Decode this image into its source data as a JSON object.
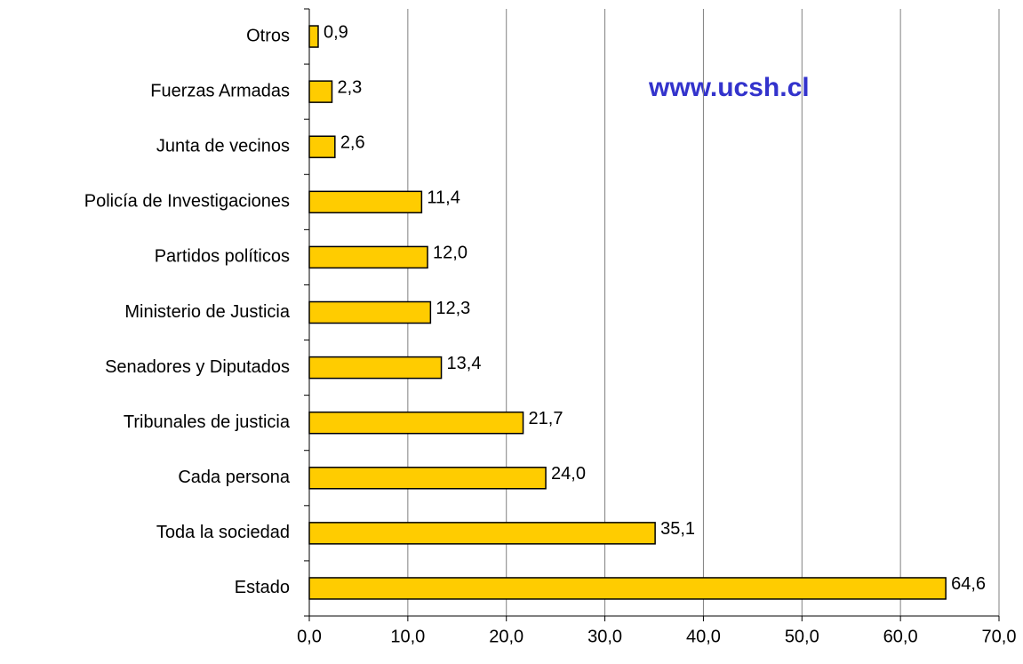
{
  "chart_data": {
    "type": "hbar",
    "annotation": "www.ucsh.cl",
    "categories": [
      "Otros",
      "Fuerzas Armadas",
      "Junta de vecinos",
      "Policía de Investigaciones",
      "Partidos políticos",
      "Ministerio de Justicia",
      "Senadores y Diputados",
      "Tribunales de justicia",
      "Cada persona",
      "Toda la sociedad",
      "Estado"
    ],
    "values": [
      0.9,
      2.3,
      2.6,
      11.4,
      12.0,
      12.3,
      13.4,
      21.7,
      24.0,
      35.1,
      64.6
    ],
    "value_labels": [
      "0,9",
      "2,3",
      "2,6",
      "11,4",
      "12,0",
      "12,3",
      "13,4",
      "21,7",
      "24,0",
      "35,1",
      "64,6"
    ],
    "color": "#ffcc00",
    "xlim": [
      0,
      70
    ],
    "xticks": [
      {
        "value": 0,
        "label": "0,0"
      },
      {
        "value": 10,
        "label": "10,0"
      },
      {
        "value": 20,
        "label": "20,0"
      },
      {
        "value": 30,
        "label": "30,0"
      },
      {
        "value": 40,
        "label": "40,0"
      },
      {
        "value": 50,
        "label": "50,0"
      },
      {
        "value": 60,
        "label": "60,0"
      },
      {
        "value": 70,
        "label": "70,0"
      }
    ],
    "grid": true
  }
}
